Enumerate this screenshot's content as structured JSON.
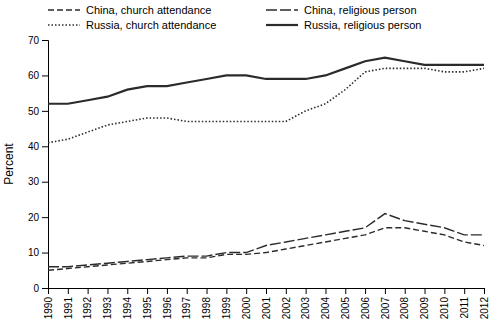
{
  "chart_data": {
    "type": "line",
    "x": [
      1990,
      1991,
      1992,
      1993,
      1994,
      1995,
      1996,
      1997,
      1998,
      1999,
      2000,
      2001,
      2002,
      2003,
      2004,
      2005,
      2006,
      2007,
      2008,
      2009,
      2010,
      2011,
      2012
    ],
    "series": [
      {
        "name": "China, church attendance",
        "color": "#2b2b2b",
        "line_style": "dashed",
        "values": [
          5,
          5.5,
          6,
          6.5,
          7,
          7.5,
          8,
          8.5,
          8.5,
          9.5,
          9.5,
          10,
          11,
          12,
          13,
          14,
          15,
          17,
          17,
          16,
          15,
          13,
          12
        ]
      },
      {
        "name": "China, religious person",
        "color": "#2b2b2b",
        "line_style": "long-dashed",
        "values": [
          6,
          6,
          6.5,
          7,
          7.5,
          8,
          8.5,
          9,
          9,
          10,
          10,
          12,
          13,
          14,
          15,
          16,
          17,
          21,
          19,
          18,
          17,
          15,
          15
        ]
      },
      {
        "name": "Russia, church attendance",
        "color": "#2b2b2b",
        "line_style": "dotted",
        "values": [
          41,
          42,
          44,
          46,
          47,
          48,
          48,
          47,
          47,
          47,
          47,
          47,
          47,
          50,
          52,
          56,
          61,
          62,
          62,
          62,
          61,
          61,
          62
        ]
      },
      {
        "name": "Russia, religious person",
        "color": "#2b2b2b",
        "line_style": "solid",
        "values": [
          52,
          52,
          53,
          54,
          56,
          57,
          57,
          58,
          59,
          60,
          60,
          59,
          59,
          59,
          60,
          62,
          64,
          65,
          64,
          63,
          63,
          63,
          63
        ]
      }
    ],
    "ylabel": "Percent",
    "ylim": [
      0,
      70
    ],
    "yticks": [
      0,
      10,
      20,
      30,
      40,
      50,
      60,
      70
    ],
    "xlim": [
      1990,
      2012
    ],
    "xticks": [
      1990,
      1991,
      1992,
      1993,
      1994,
      1995,
      1996,
      1997,
      1998,
      1999,
      2000,
      2001,
      2002,
      2003,
      2004,
      2005,
      2006,
      2007,
      2008,
      2009,
      2010,
      2011,
      2012
    ],
    "legend": "top",
    "grid": false
  }
}
